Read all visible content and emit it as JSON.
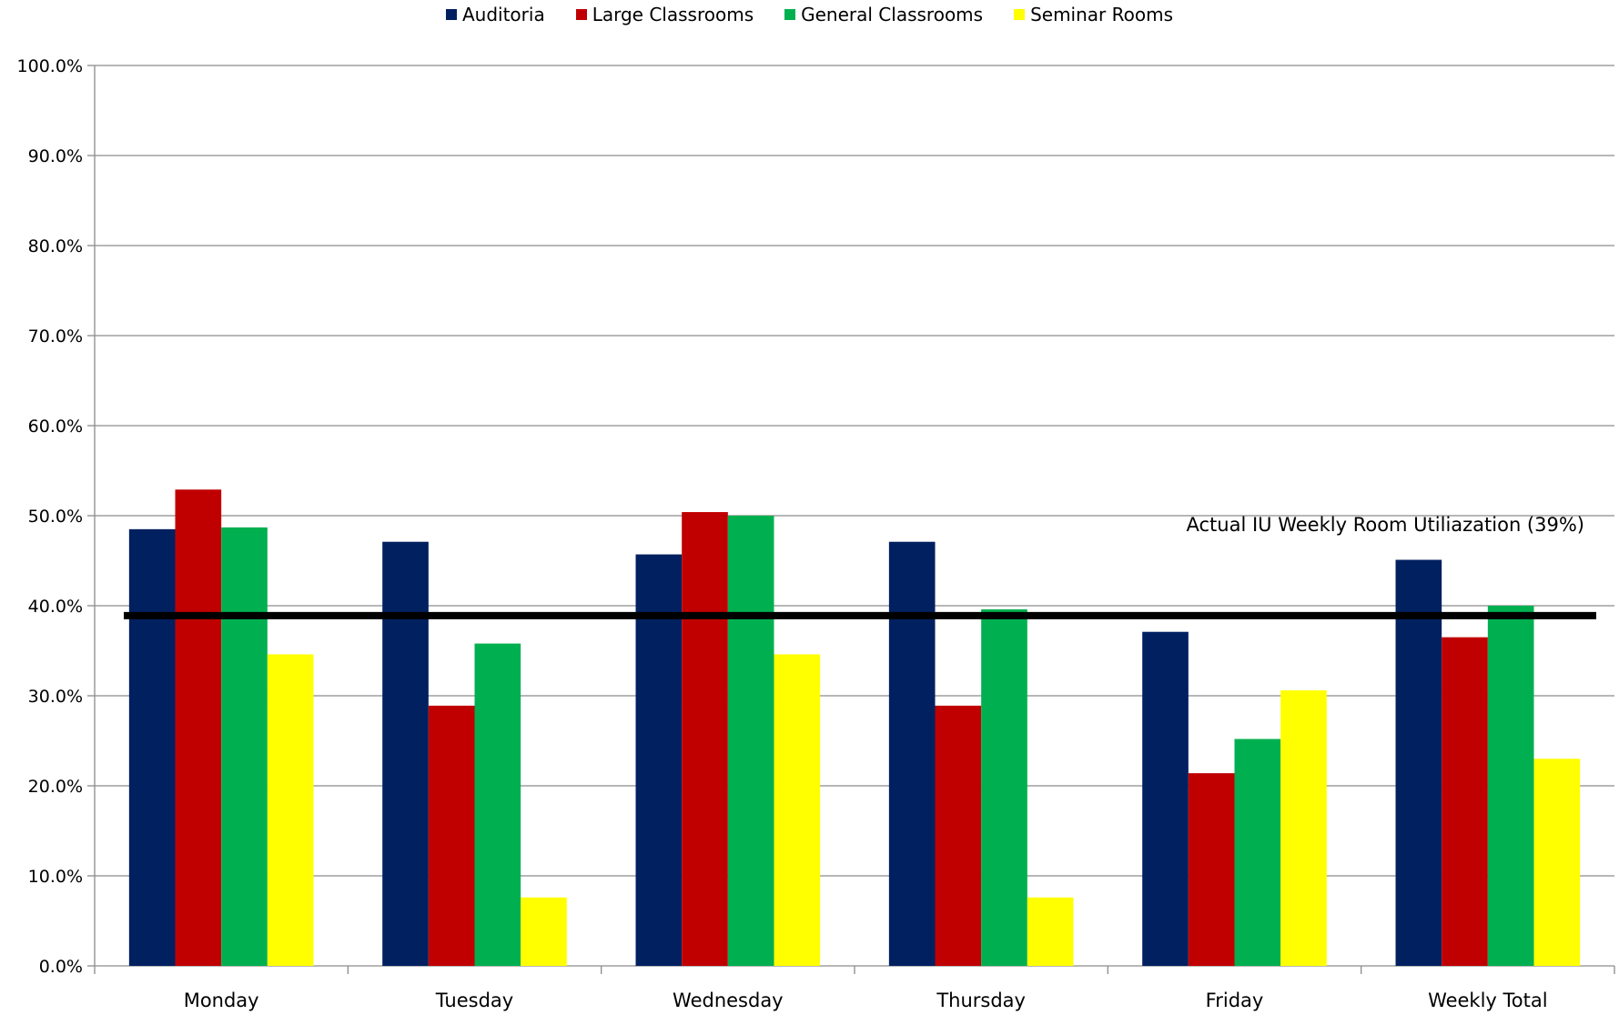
{
  "chart_data": {
    "type": "bar",
    "title": "",
    "xlabel": "",
    "ylabel": "",
    "categories": [
      "Monday",
      "Tuesday",
      "Wednesday",
      "Thursday",
      "Friday",
      "Weekly Total"
    ],
    "series": [
      {
        "name": "Auditoria",
        "color": "#002060",
        "values": [
          48.5,
          47.1,
          45.7,
          47.1,
          37.1,
          45.1
        ]
      },
      {
        "name": "Large Classrooms",
        "color": "#C00000",
        "values": [
          52.9,
          28.9,
          50.4,
          28.9,
          21.4,
          36.5
        ]
      },
      {
        "name": "General Classrooms",
        "color": "#00B050",
        "values": [
          48.7,
          35.8,
          50.0,
          39.6,
          25.2,
          40.0
        ]
      },
      {
        "name": "Seminar Rooms",
        "color": "#FFFF00",
        "values": [
          34.6,
          7.6,
          34.6,
          7.6,
          30.6,
          23.0
        ]
      }
    ],
    "ylim": [
      0,
      100
    ],
    "yticks": [
      0,
      10,
      20,
      30,
      40,
      50,
      60,
      70,
      80,
      90,
      100
    ],
    "ytick_labels": [
      "0.0%",
      "10.0%",
      "20.0%",
      "30.0%",
      "40.0%",
      "50.0%",
      "60.0%",
      "70.0%",
      "80.0%",
      "90.0%",
      "100.0%"
    ],
    "grid": true,
    "legend_position": "top-center",
    "reference_line": {
      "value": 39,
      "label": "Actual IU Weekly Room Utiliazation (39%)",
      "color": "#000000"
    }
  }
}
